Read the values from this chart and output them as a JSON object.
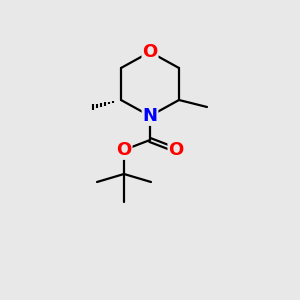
{
  "bg_color": "#e8e8e8",
  "atom_colors": {
    "C": "#000000",
    "N": "#0000ff",
    "O": "#ff0000"
  },
  "figsize": [
    3.0,
    3.0
  ],
  "dpi": 100,
  "bond_lw": 1.6,
  "font_size": 13
}
